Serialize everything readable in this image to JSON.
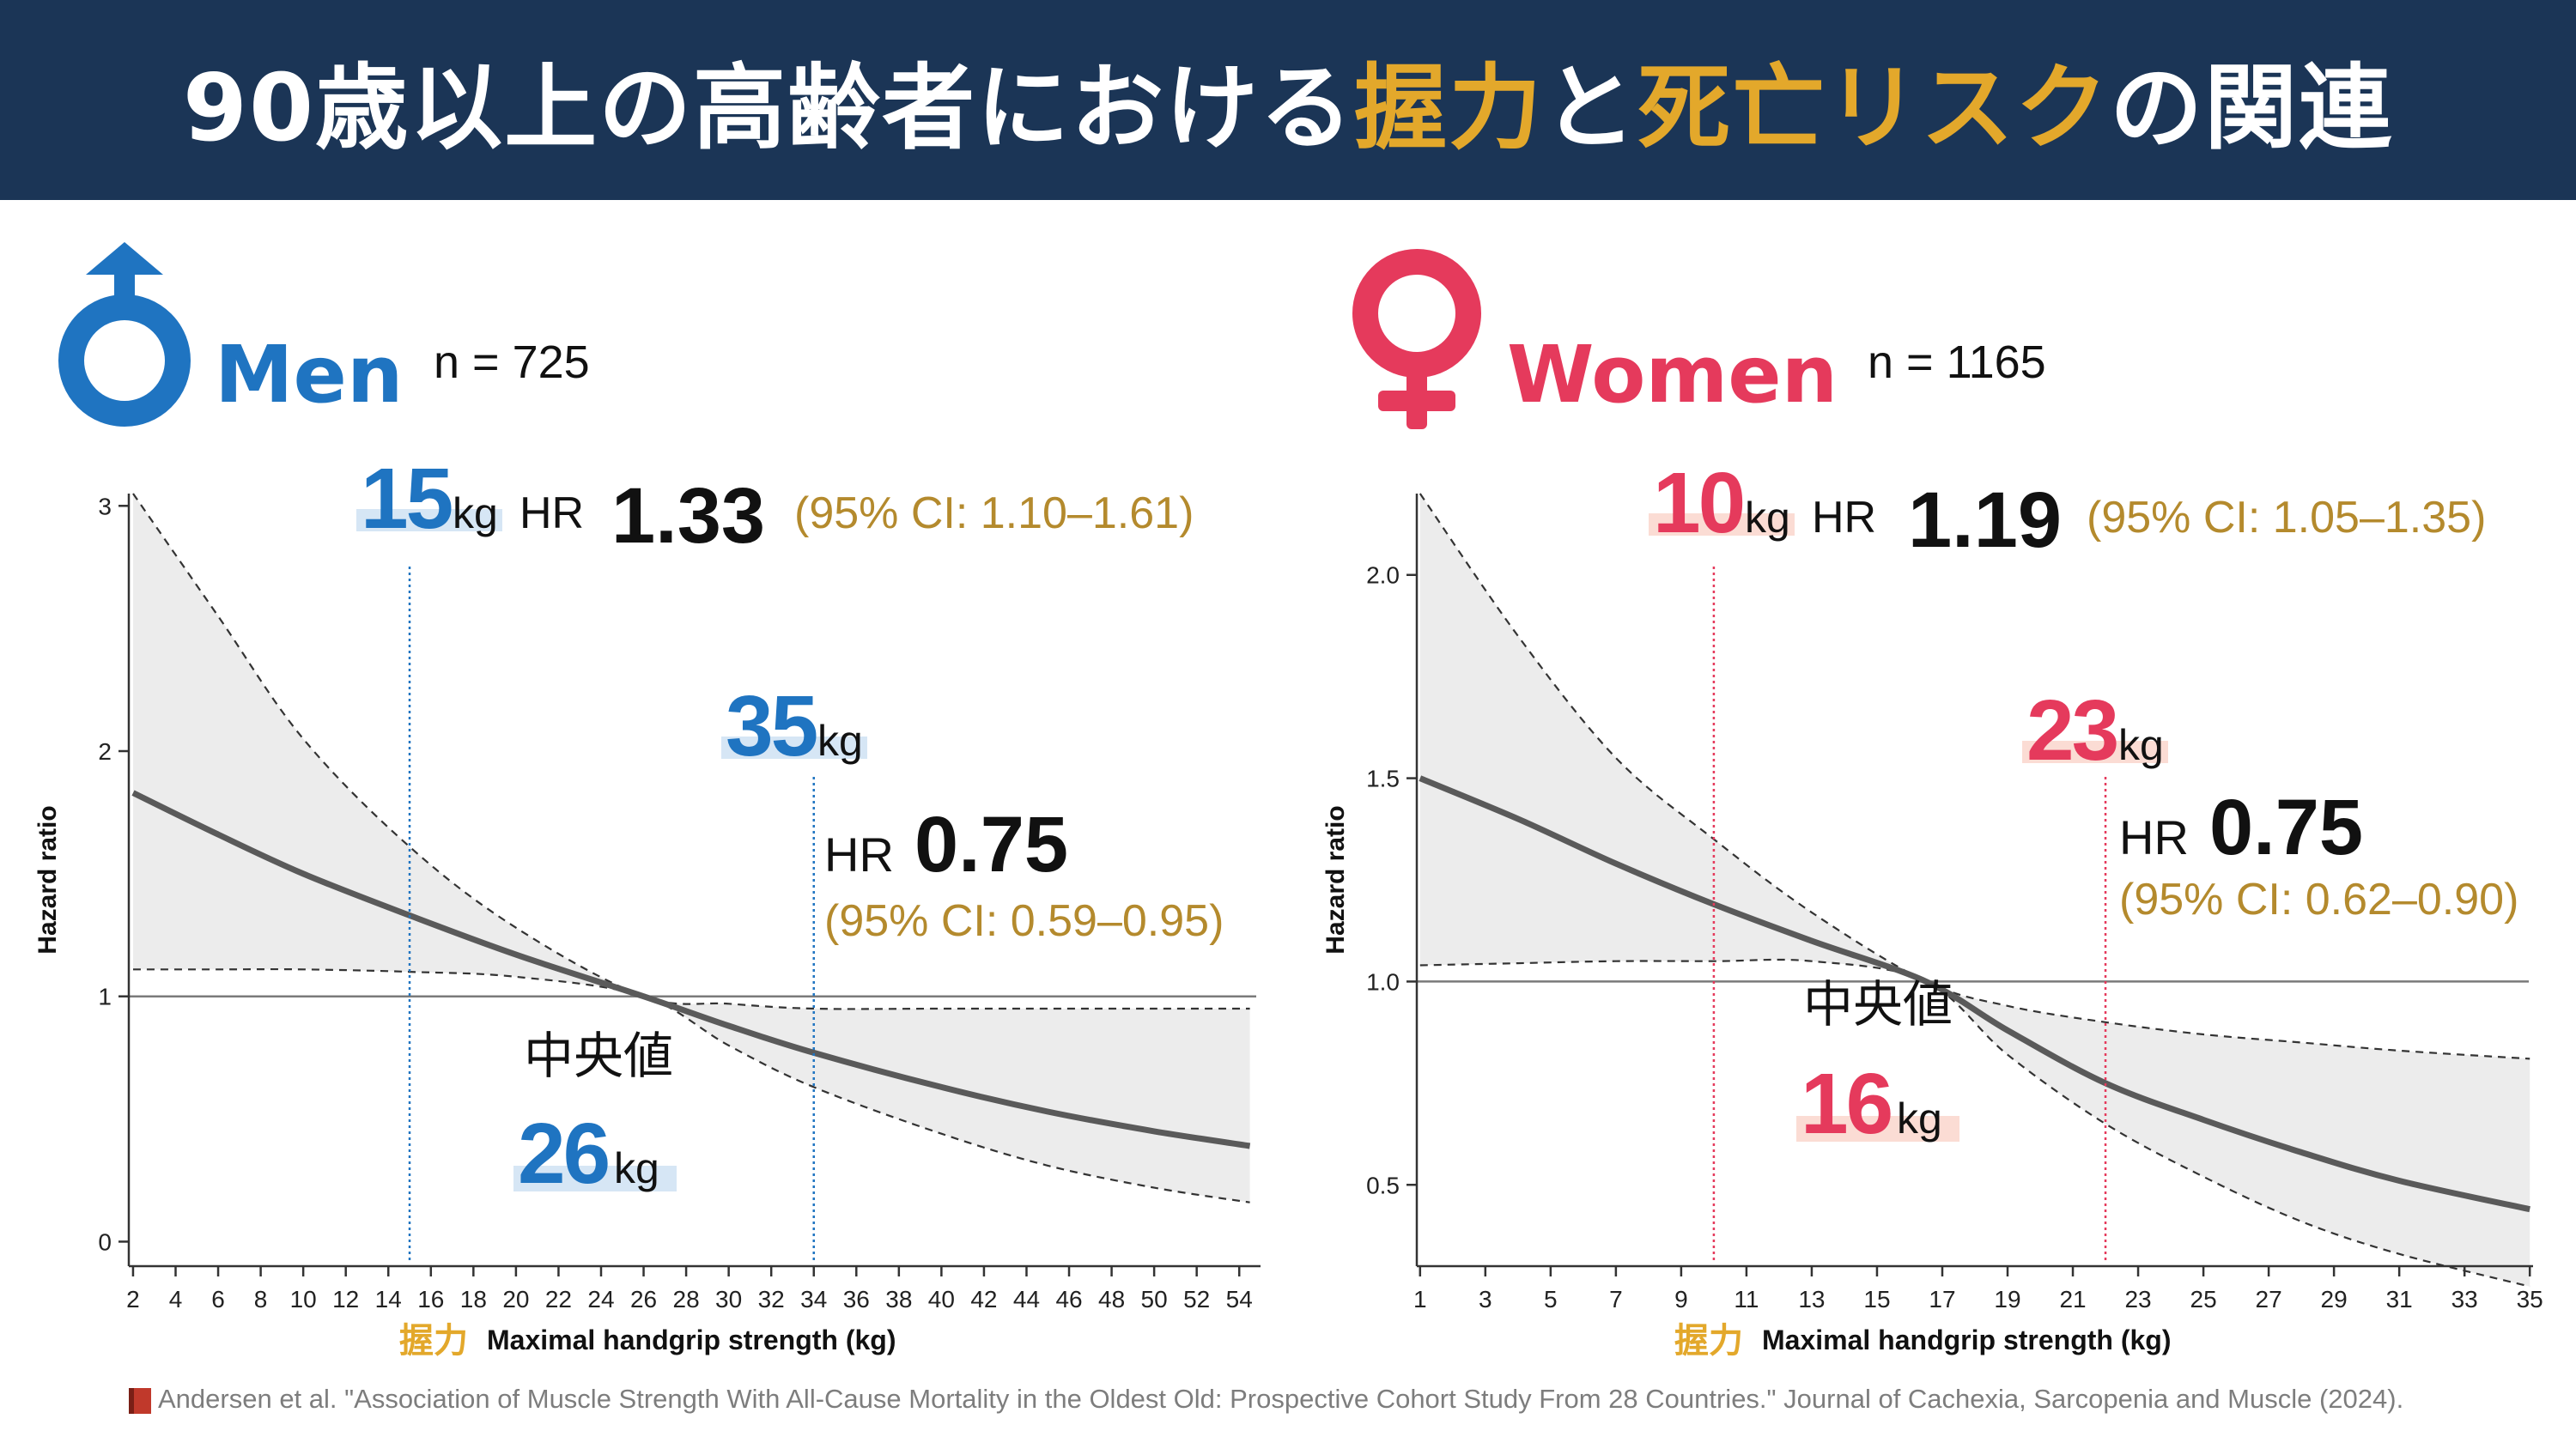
{
  "title": {
    "part1": "90歳以上の高齢者における",
    "hl1": "握力",
    "mid": "と",
    "hl2": "死亡リスク",
    "part2": "の関連"
  },
  "colors": {
    "banner_bg": "#1b3556",
    "highlight": "#e3a82b",
    "men": "#1f74c1",
    "women": "#e53a5c",
    "ci_text": "#b48a2d",
    "curve": "#5a5a5a",
    "ci_fill": "#ececec"
  },
  "citation": "Andersen et al. \"Association of Muscle Strength With All-Cause Mortality in the Oldest Old: Prospective Cohort Study From 28 Countries.\" Journal of Cachexia, Sarcopenia and Muscle (2024).",
  "chart_data": [
    {
      "type": "line",
      "panel": "men",
      "icon": "male-symbol-icon",
      "group_label": "Men",
      "n_label": "n = 725",
      "ylabel": "Hazard ratio",
      "xlabel_jp": "握力",
      "xlabel": "Maximal handgrip strength (kg)",
      "xlim": [
        1.8,
        55
      ],
      "ylim": [
        -0.1,
        3.05
      ],
      "xticks": [
        2,
        4,
        6,
        8,
        10,
        12,
        14,
        16,
        18,
        20,
        22,
        24,
        26,
        28,
        30,
        32,
        34,
        36,
        38,
        40,
        42,
        44,
        46,
        48,
        50,
        52,
        54
      ],
      "yticks": [
        0,
        1,
        2,
        3
      ],
      "reference_line": 1,
      "x": [
        2,
        6,
        10,
        15,
        20,
        26,
        30,
        34,
        40,
        45,
        50,
        54.5
      ],
      "hr": [
        1.83,
        1.66,
        1.5,
        1.33,
        1.17,
        1.0,
        0.88,
        0.77,
        0.63,
        0.53,
        0.45,
        0.39
      ],
      "lower": [
        1.11,
        1.11,
        1.11,
        1.1,
        1.08,
        1.0,
        0.8,
        0.63,
        0.44,
        0.31,
        0.22,
        0.16
      ],
      "upper": [
        3.05,
        2.55,
        2.05,
        1.61,
        1.28,
        1.0,
        0.97,
        0.95,
        0.95,
        0.95,
        0.95,
        0.95
      ],
      "annotations": {
        "low": {
          "x": 15,
          "value": "15",
          "unit": "kg",
          "hr_label": "HR",
          "hr": "1.33",
          "ci": "(95% CI: 1.10–1.61)"
        },
        "high": {
          "x": 34,
          "value": "35",
          "unit": "kg",
          "hr_label": "HR",
          "hr": "0.75",
          "ci": "(95% CI: 0.59–0.95)"
        },
        "median": {
          "label": "中央値",
          "value": "26",
          "unit": "kg"
        }
      }
    },
    {
      "type": "line",
      "panel": "women",
      "icon": "female-symbol-icon",
      "group_label": "Women",
      "n_label": "n = 1165",
      "ylabel": "Hazard ratio",
      "xlabel_jp": "握力",
      "xlabel": "Maximal handgrip strength (kg)",
      "xlim": [
        0.9,
        35.1
      ],
      "ylim": [
        0.3,
        2.2
      ],
      "xticks": [
        1,
        3,
        5,
        7,
        9,
        11,
        13,
        15,
        17,
        19,
        21,
        23,
        25,
        27,
        29,
        31,
        33,
        35
      ],
      "yticks": [
        0.5,
        1.0,
        1.5,
        2.0
      ],
      "ytick_labels": [
        "0.5",
        "1.0",
        "1.5",
        "2.0"
      ],
      "reference_line": 1.0,
      "x": [
        1,
        4,
        7,
        10,
        13,
        16.5,
        19,
        22,
        25,
        28,
        31,
        35
      ],
      "hr": [
        1.5,
        1.4,
        1.29,
        1.19,
        1.1,
        1.0,
        0.88,
        0.75,
        0.66,
        0.58,
        0.51,
        0.44
      ],
      "lower": [
        1.04,
        1.045,
        1.05,
        1.05,
        1.05,
        1.0,
        0.82,
        0.65,
        0.52,
        0.41,
        0.33,
        0.25
      ],
      "upper": [
        2.2,
        1.85,
        1.55,
        1.35,
        1.17,
        1.0,
        0.94,
        0.9,
        0.87,
        0.85,
        0.83,
        0.81
      ],
      "annotations": {
        "low": {
          "x": 10,
          "value": "10",
          "unit": "kg",
          "hr_label": "HR",
          "hr": "1.19",
          "ci": "(95% CI: 1.05–1.35)"
        },
        "high": {
          "x": 22,
          "value": "23",
          "unit": "kg",
          "hr_label": "HR",
          "hr": "0.75",
          "ci": "(95% CI: 0.62–0.90)"
        },
        "median": {
          "label": "中央値",
          "value": "16",
          "unit": "kg"
        }
      }
    }
  ]
}
